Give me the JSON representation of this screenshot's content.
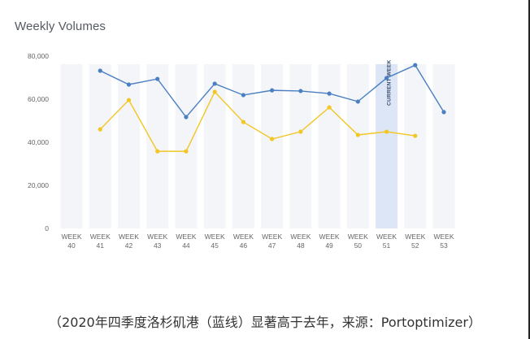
{
  "chart_data": {
    "type": "line",
    "title": "Weekly Volumes",
    "xlabel": "",
    "ylabel": "",
    "categories": [
      "WEEK 40",
      "WEEK 41",
      "WEEK 42",
      "WEEK 43",
      "WEEK 44",
      "WEEK 45",
      "WEEK 46",
      "WEEK 47",
      "WEEK 48",
      "WEEK 49",
      "WEEK 50",
      "WEEK 51",
      "WEEK 52",
      "WEEK 53"
    ],
    "x_tick_lines": [
      [
        "WEEK",
        "40"
      ],
      [
        "WEEK",
        "41"
      ],
      [
        "WEEK",
        "42"
      ],
      [
        "WEEK",
        "43"
      ],
      [
        "WEEK",
        "44"
      ],
      [
        "WEEK",
        "45"
      ],
      [
        "WEEK",
        "46"
      ],
      [
        "WEEK",
        "47"
      ],
      [
        "WEEK",
        "48"
      ],
      [
        "WEEK",
        "49"
      ],
      [
        "WEEK",
        "50"
      ],
      [
        "WEEK",
        "51"
      ],
      [
        "WEEK",
        "52"
      ],
      [
        "WEEK",
        "53"
      ]
    ],
    "series": [
      {
        "name": "2020 (blue)",
        "color": "#4a7fc1",
        "values": [
          null,
          73200,
          66800,
          69400,
          51700,
          67200,
          61900,
          64100,
          63800,
          62600,
          58900,
          69800,
          75800,
          54000
        ]
      },
      {
        "name": "Last year (yellow)",
        "color": "#f2c624",
        "values": [
          null,
          46000,
          59600,
          35800,
          35800,
          63400,
          49400,
          41500,
          44900,
          56200,
          43400,
          44900,
          43000,
          null
        ]
      }
    ],
    "ylim": [
      0,
      80000
    ],
    "yticks": [
      0,
      20000,
      40000,
      60000,
      80000
    ],
    "ytick_labels": [
      "0",
      "20,000",
      "40,000",
      "60,000",
      "80,000"
    ],
    "grid": false,
    "legend": null,
    "highlight": {
      "category": "WEEK 51",
      "label": "CURRENT WEEK",
      "color": "#dde6f7"
    },
    "band_color": "#f4f5f9"
  },
  "caption": "（2020年四季度洛杉矶港（蓝线）显著高于去年，来源：Portoptimizer）"
}
